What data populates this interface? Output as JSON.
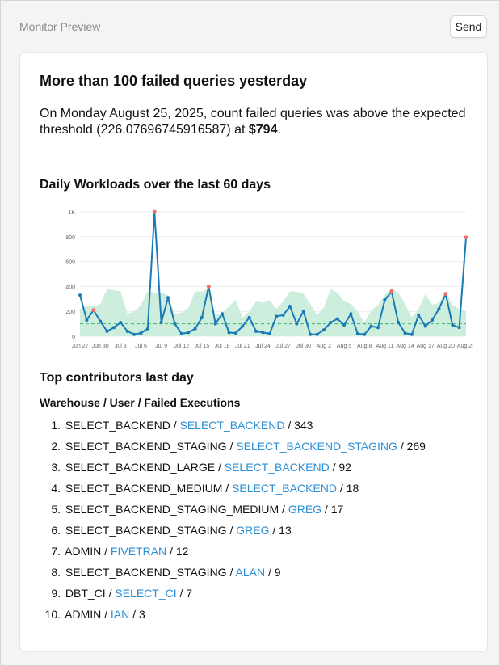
{
  "header": {
    "title": "Monitor Preview",
    "send_label": "Send"
  },
  "alert": {
    "headline": "More than 100 failed queries yesterday",
    "summary_pre": "On Monday August 25, 2025, count failed queries was above the expected threshold (226.07696745916587) at ",
    "summary_value": "$794",
    "summary_post": "."
  },
  "chart_section": {
    "title": "Daily Workloads over the last 60 days"
  },
  "chart_data": {
    "type": "line",
    "title": "Daily Workloads over the last 60 days",
    "x_start": "Jun 27",
    "x_tick_labels": [
      "Jun 27",
      "Jun 30",
      "Jul 3",
      "Jul 6",
      "Jul 9",
      "Jul 12",
      "Jul 15",
      "Jul 18",
      "Jul 21",
      "Jul 24",
      "Jul 27",
      "Jul 30",
      "Aug 2",
      "Aug 5",
      "Aug 8",
      "Aug 11",
      "Aug 14",
      "Aug 17",
      "Aug 20",
      "Aug 23"
    ],
    "y_tick_labels": [
      "0",
      "200",
      "400",
      "600",
      "800",
      "1K"
    ],
    "ylim": [
      0,
      1000
    ],
    "threshold": 100,
    "series": [
      {
        "values": [
          330,
          130,
          210,
          120,
          40,
          70,
          110,
          40,
          15,
          25,
          60,
          1000,
          110,
          310,
          100,
          20,
          30,
          60,
          150,
          400,
          100,
          180,
          30,
          25,
          80,
          150,
          40,
          30,
          20,
          160,
          170,
          240,
          100,
          200,
          15,
          15,
          50,
          110,
          140,
          90,
          180,
          20,
          15,
          80,
          70,
          290,
          360,
          110,
          25,
          15,
          170,
          80,
          130,
          220,
          340,
          90,
          70,
          794
        ]
      },
      {
        "values": [
          220,
          240,
          240,
          260,
          380,
          370,
          360,
          180,
          200,
          250,
          360,
          350,
          350,
          330,
          180,
          190,
          230,
          360,
          360,
          380,
          170,
          190,
          240,
          290,
          150,
          200,
          280,
          270,
          290,
          220,
          280,
          360,
          360,
          340,
          260,
          170,
          230,
          380,
          350,
          280,
          260,
          200,
          110,
          210,
          250,
          330,
          390,
          350,
          260,
          150,
          220,
          340,
          250,
          270,
          360,
          250,
          220,
          200
        ]
      }
    ],
    "anomaly_indices": [
      2,
      11,
      19,
      46,
      54,
      57
    ],
    "colors": {
      "line": "#1a7ab8",
      "band": "#cdeedd",
      "threshold": "#3dbb6f",
      "anomaly": "#ef6b6b",
      "grid": "#ececec",
      "axis_text": "#666666"
    }
  },
  "contributors": {
    "title": "Top contributors last day",
    "header": "Warehouse / User / Failed Executions",
    "items": [
      {
        "num": "1.",
        "warehouse": "SELECT_BACKEND",
        "user": "SELECT_BACKEND",
        "count": "343"
      },
      {
        "num": "2.",
        "warehouse": "SELECT_BACKEND_STAGING",
        "user": "SELECT_BACKEND_STAGING",
        "count": "269"
      },
      {
        "num": "3.",
        "warehouse": "SELECT_BACKEND_LARGE",
        "user": "SELECT_BACKEND",
        "count": "92"
      },
      {
        "num": "4.",
        "warehouse": "SELECT_BACKEND_MEDIUM",
        "user": "SELECT_BACKEND",
        "count": "18"
      },
      {
        "num": "5.",
        "warehouse": "SELECT_BACKEND_STAGING_MEDIUM",
        "user": "GREG",
        "count": "17"
      },
      {
        "num": "6.",
        "warehouse": "SELECT_BACKEND_STAGING",
        "user": "GREG",
        "count": "13"
      },
      {
        "num": "7.",
        "warehouse": "ADMIN",
        "user": "FIVETRAN",
        "count": "12"
      },
      {
        "num": "8.",
        "warehouse": "SELECT_BACKEND_STAGING",
        "user": "ALAN",
        "count": "9"
      },
      {
        "num": "9.",
        "warehouse": "DBT_CI",
        "user": "SELECT_CI",
        "count": "7"
      },
      {
        "num": "10.",
        "warehouse": "ADMIN",
        "user": "IAN",
        "count": "3"
      }
    ]
  }
}
